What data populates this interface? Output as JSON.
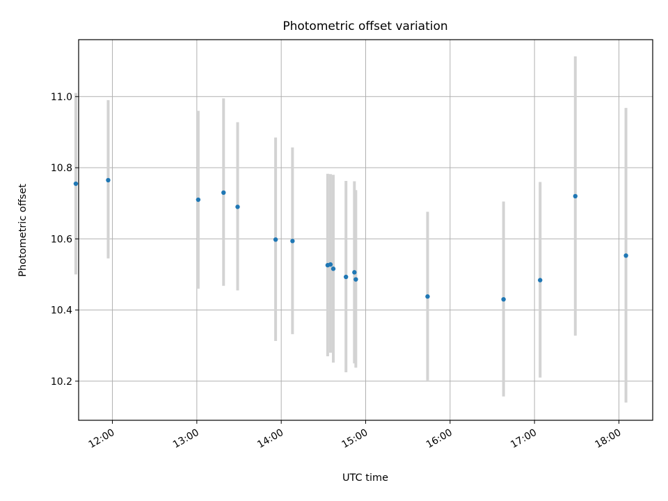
{
  "chart_data": {
    "type": "scatter",
    "title": "Photometric offset variation",
    "xlabel": "UTC time",
    "ylabel": "Photometric offset",
    "x_type": "time",
    "xlim": [
      "11:36",
      "18:24"
    ],
    "ylim": [
      10.09,
      11.16
    ],
    "x_ticks": [
      "12:00",
      "13:00",
      "14:00",
      "15:00",
      "16:00",
      "17:00",
      "18:00"
    ],
    "y_ticks": [
      10.2,
      10.4,
      10.6,
      10.8,
      11.0
    ],
    "grid": true,
    "legend": "none",
    "colors": {
      "marker": "#1f77b4",
      "error_bar": "#d3d3d3",
      "grid": "#b0b0b0"
    },
    "points": [
      {
        "x": "11:34",
        "y": 10.755,
        "y_low": 10.5,
        "y_high": 11.01
      },
      {
        "x": "11:57",
        "y": 10.765,
        "y_low": 10.545,
        "y_high": 10.99
      },
      {
        "x": "13:01",
        "y": 10.71,
        "y_low": 10.46,
        "y_high": 10.96
      },
      {
        "x": "13:19",
        "y": 10.73,
        "y_low": 10.468,
        "y_high": 10.995
      },
      {
        "x": "13:29",
        "y": 10.69,
        "y_low": 10.455,
        "y_high": 10.928
      },
      {
        "x": "13:56",
        "y": 10.598,
        "y_low": 10.313,
        "y_high": 10.885
      },
      {
        "x": "14:08",
        "y": 10.594,
        "y_low": 10.332,
        "y_high": 10.857
      },
      {
        "x": "14:33",
        "y": 10.526,
        "y_low": 10.27,
        "y_high": 10.783
      },
      {
        "x": "14:35",
        "y": 10.528,
        "y_low": 10.28,
        "y_high": 10.782
      },
      {
        "x": "14:37",
        "y": 10.516,
        "y_low": 10.252,
        "y_high": 10.78
      },
      {
        "x": "14:46",
        "y": 10.493,
        "y_low": 10.225,
        "y_high": 10.763
      },
      {
        "x": "14:52",
        "y": 10.506,
        "y_low": 10.25,
        "y_high": 10.762
      },
      {
        "x": "14:53",
        "y": 10.486,
        "y_low": 10.238,
        "y_high": 10.737
      },
      {
        "x": "15:44",
        "y": 10.438,
        "y_low": 10.202,
        "y_high": 10.676
      },
      {
        "x": "16:38",
        "y": 10.43,
        "y_low": 10.157,
        "y_high": 10.705
      },
      {
        "x": "17:04",
        "y": 10.484,
        "y_low": 10.21,
        "y_high": 10.76
      },
      {
        "x": "17:29",
        "y": 10.72,
        "y_low": 10.328,
        "y_high": 11.113
      },
      {
        "x": "18:05",
        "y": 10.553,
        "y_low": 10.14,
        "y_high": 10.968
      }
    ]
  }
}
